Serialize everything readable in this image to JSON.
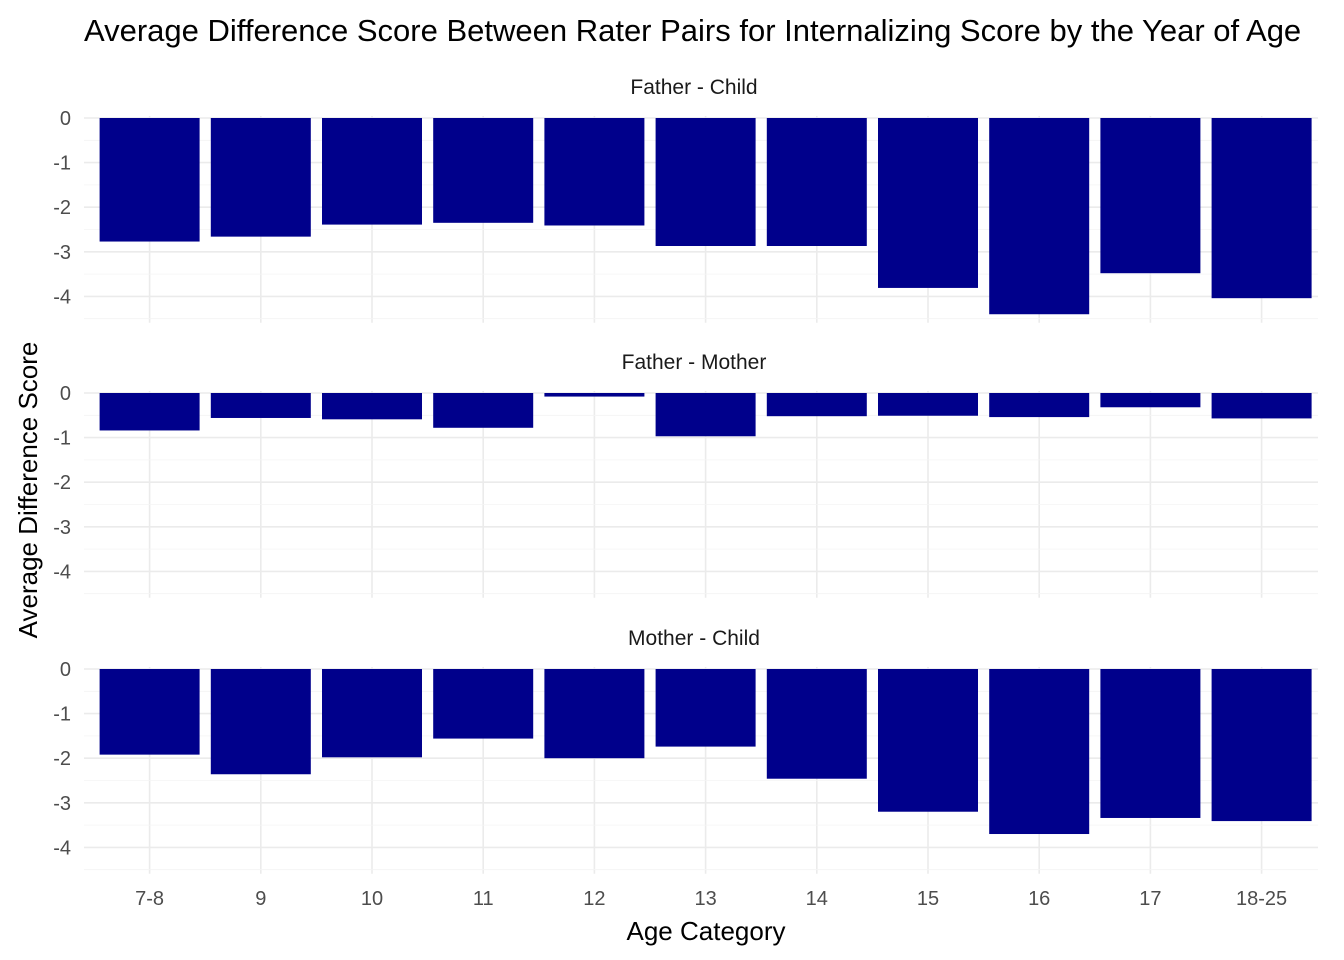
{
  "chart_data": {
    "type": "bar",
    "title": "Average Difference Score Between Rater Pairs for  Internalizing Score by the Year of Age",
    "xlabel": "Age Category",
    "ylabel": "Average Difference Score",
    "categories": [
      "7-8",
      "9",
      "10",
      "11",
      "12",
      "13",
      "14",
      "15",
      "16",
      "17",
      "18-25"
    ],
    "ylim": [
      -4.5,
      0
    ],
    "yticks": [
      0,
      -1,
      -2,
      -3,
      -4
    ],
    "bar_color": "#00008B",
    "grid": true,
    "facets": [
      {
        "name": "Father - Child",
        "values": [
          -2.77,
          -2.66,
          -2.39,
          -2.35,
          -2.41,
          -2.87,
          -2.87,
          -3.81,
          -4.4,
          -3.48,
          -4.04
        ]
      },
      {
        "name": "Father - Mother",
        "values": [
          -0.84,
          -0.56,
          -0.59,
          -0.78,
          -0.08,
          -0.97,
          -0.52,
          -0.51,
          -0.54,
          -0.32,
          -0.57
        ]
      },
      {
        "name": "Mother - Child",
        "values": [
          -1.92,
          -2.36,
          -1.98,
          -1.56,
          -2.0,
          -1.74,
          -2.46,
          -3.2,
          -3.7,
          -3.34,
          -3.41
        ]
      }
    ]
  }
}
